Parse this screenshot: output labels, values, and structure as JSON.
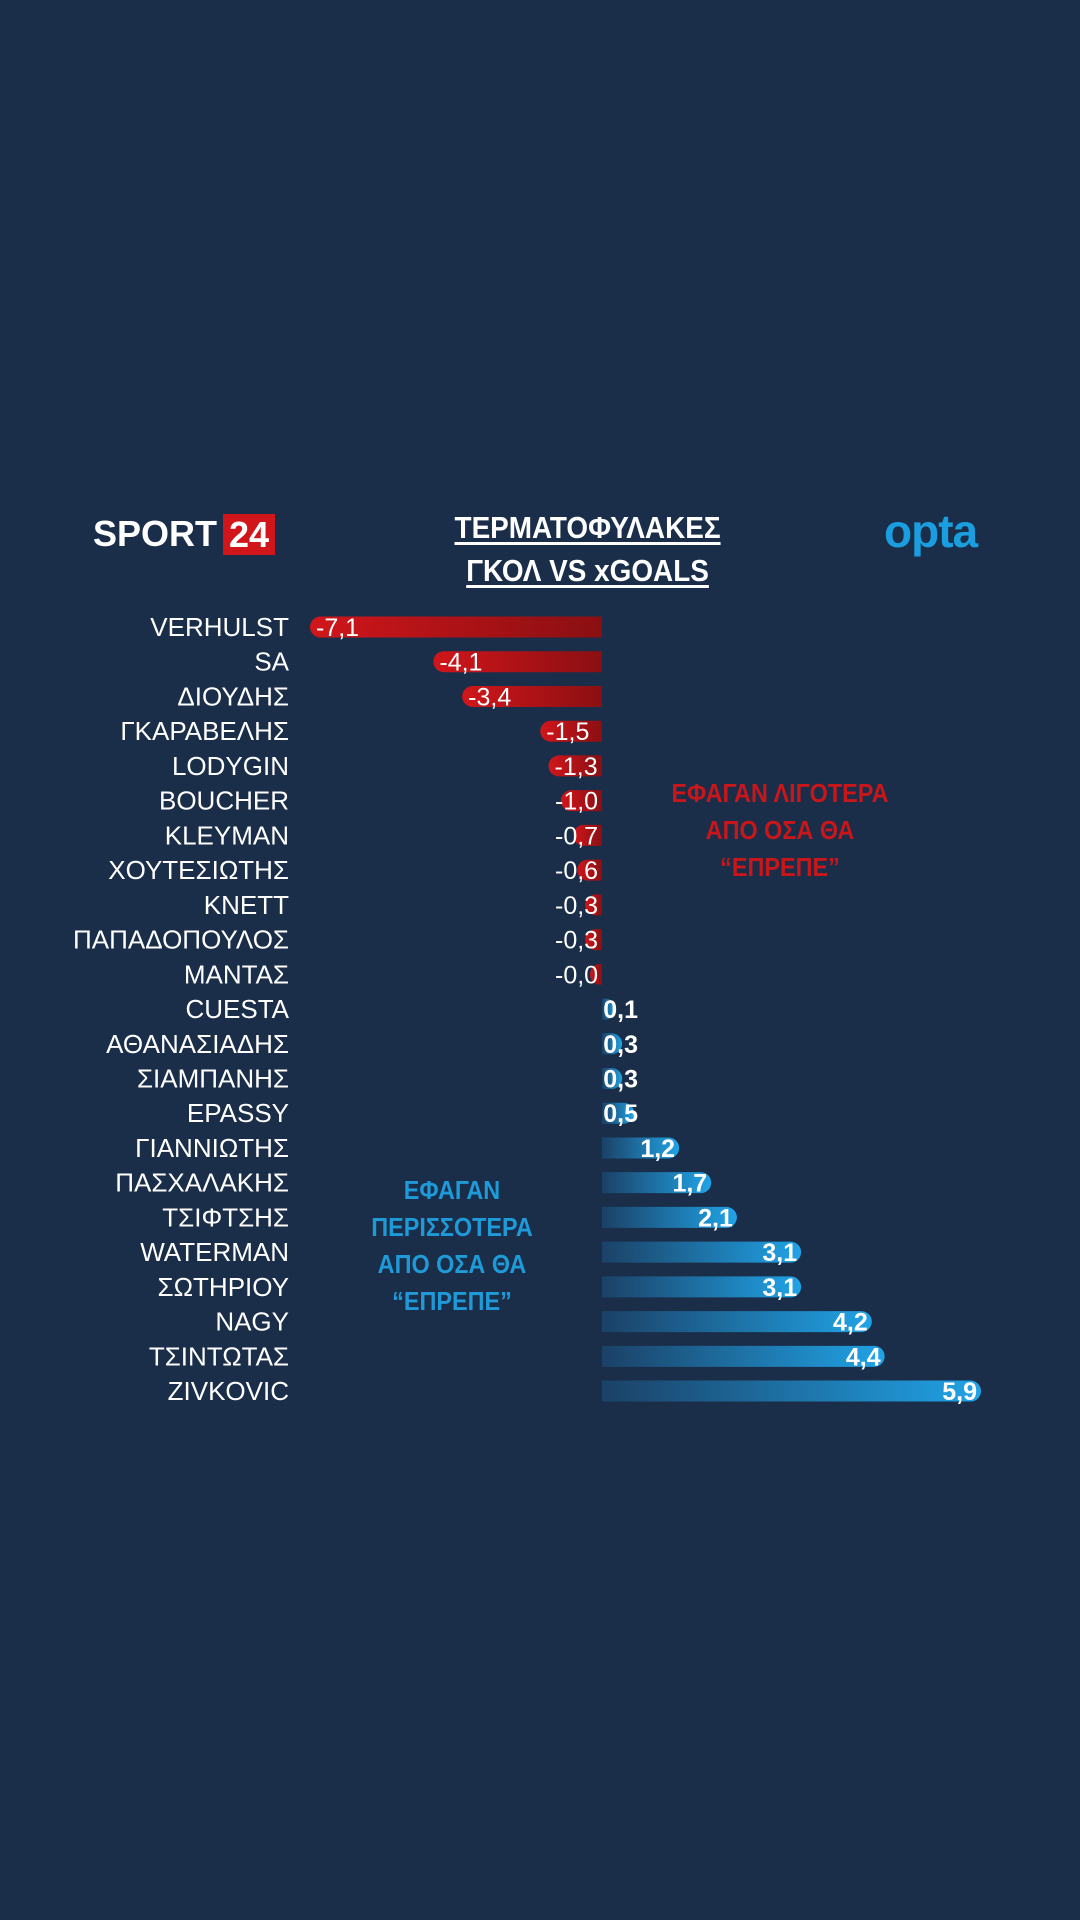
{
  "header": {
    "logo_left_text": "SPORT",
    "logo_left_num": "24",
    "logo_right": "opta",
    "title_line1": "ΤΕΡΜΑΤΟΦΥΛΑΚΕΣ",
    "title_line2": "ΓΚΟΛ VS xGOALS"
  },
  "notes": {
    "negative_line1": "ΕΦΑΓΑΝ ΛΙΓΟΤΕΡΑ",
    "negative_line2": "ΑΠΟ ΟΣΑ ΘΑ “ΕΠΡΕΠΕ”",
    "positive_line1": "ΕΦΑΓΑΝ ΠΕΡΙΣΣΟΤΕΡΑ",
    "positive_line2": "ΑΠΟ ΟΣΑ ΘΑ “ΕΠΡΕΠΕ”"
  },
  "colors": {
    "background": "#1a2e4a",
    "negative": "#c8161a",
    "positive": "#1e9ad8"
  },
  "chart_data": {
    "type": "bar",
    "orientation": "horizontal",
    "categories": [
      "VERHULST",
      "SA",
      "ΔΙΟΥΔΗΣ",
      "ΓΚΑΡΑΒΕΛΗΣ",
      "LODYGIN",
      "BOUCHER",
      "KLEYMAN",
      "ΧΟΥΤΕΣΙΩΤΗΣ",
      "KNETT",
      "ΠΑΠΑΔΟΠΟΥΛΟΣ",
      "ΜΑΝΤΑΣ",
      "CUESTA",
      "ΑΘΑΝΑΣΙΑΔΗΣ",
      "ΣΙΑΜΠΑΝΗΣ",
      "EPASSY",
      "ΓΙΑΝΝΙΩΤΗΣ",
      "ΠΑΣΧΑΛΑΚΗΣ",
      "ΤΣΙΦΤΣΗΣ",
      "WATERMAN",
      "ΣΩΤΗΡΙΟΥ",
      "NAGY",
      "ΤΣΙΝΤΩΤΑΣ",
      "ZIVKOVIC"
    ],
    "values": [
      -7.1,
      -4.1,
      -3.4,
      -1.5,
      -1.3,
      -1.0,
      -0.7,
      -0.6,
      -0.3,
      -0.3,
      -0.0,
      0.1,
      0.3,
      0.3,
      0.5,
      1.2,
      1.7,
      2.1,
      3.1,
      3.1,
      4.2,
      4.4,
      5.9
    ],
    "labels": [
      "-7,1",
      "-4,1",
      "-3,4",
      "-1,5",
      "-1,3",
      "-1,0",
      "-0,7",
      "-0,6",
      "-0,3",
      "-0,3",
      "-0,0",
      "0,1",
      "0,3",
      "0,3",
      "0,5",
      "1,2",
      "1,7",
      "2,1",
      "3,1",
      "3,1",
      "4,2",
      "4,4",
      "5,9"
    ],
    "xlim": [
      -7.1,
      5.9
    ],
    "grid": false,
    "legend": "none"
  }
}
